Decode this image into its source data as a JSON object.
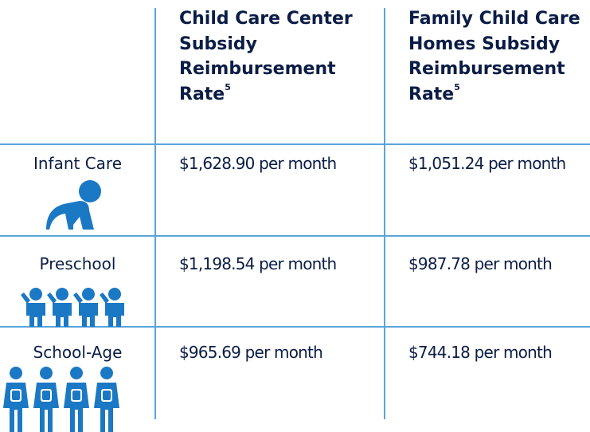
{
  "table": {
    "columns": [
      {
        "text": "Child Care Center Subsidy Reimbursement Rate",
        "note": "5"
      },
      {
        "text": "Family Child Care Homes Subsidy Reimbursement Rate",
        "note": "5"
      }
    ],
    "rows": [
      {
        "label": "Infant Care",
        "values": [
          "$1,628.90 per month",
          "$1,051.24 per month"
        ]
      },
      {
        "label": "Preschool",
        "values": [
          "$1,198.54 per month",
          "$987.78 per month"
        ]
      },
      {
        "label": "School-Age",
        "values": [
          "$965.69 per month",
          "$744.18 per month"
        ]
      }
    ]
  }
}
